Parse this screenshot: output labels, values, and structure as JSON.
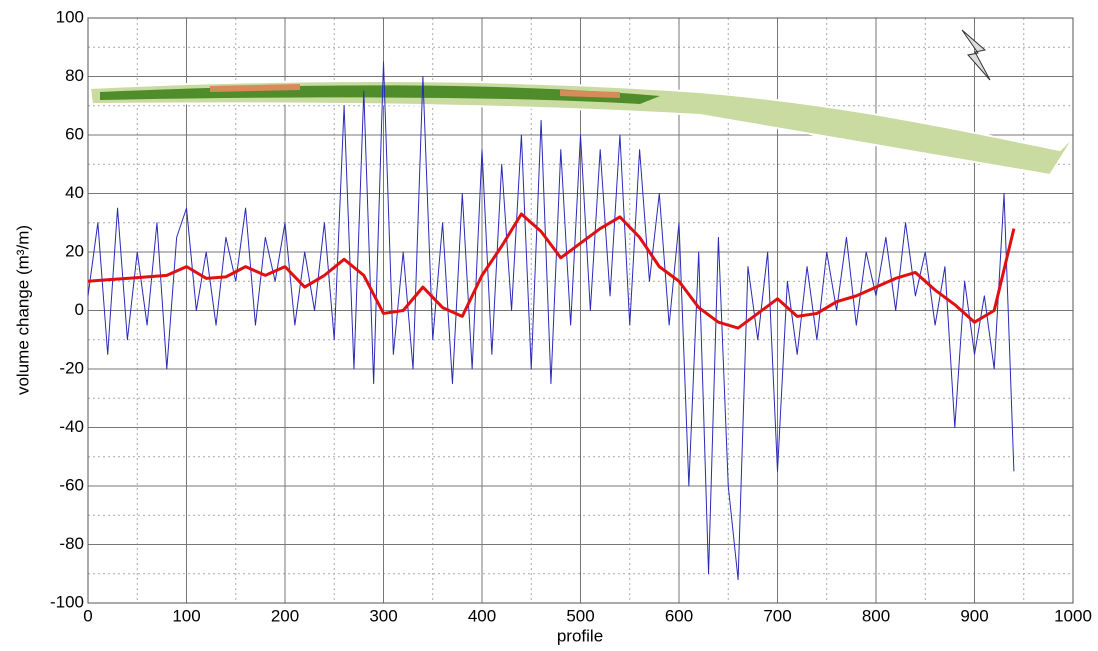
{
  "chart_data": {
    "type": "line",
    "xlabel": "profile",
    "ylabel": "volume change (m³/m)",
    "xlim": [
      0,
      1000
    ],
    "ylim": [
      -100,
      100
    ],
    "xticks": [
      0,
      100,
      200,
      300,
      400,
      500,
      600,
      700,
      800,
      900,
      1000
    ],
    "yticks": [
      -100,
      -80,
      -60,
      -40,
      -20,
      0,
      20,
      40,
      60,
      80,
      100
    ],
    "xminorticks": [
      50,
      150,
      250,
      350,
      450,
      550,
      650,
      750,
      850,
      950
    ],
    "yminorticks": [
      -90,
      -70,
      -50,
      -30,
      -10,
      10,
      30,
      50,
      70,
      90
    ],
    "grid": true,
    "series": [
      {
        "color": "#2a2ab8",
        "width": 1,
        "x": [
          0,
          10,
          20,
          30,
          40,
          50,
          60,
          70,
          80,
          90,
          100,
          110,
          120,
          130,
          140,
          150,
          160,
          170,
          180,
          190,
          200,
          210,
          220,
          230,
          240,
          250,
          260,
          270,
          280,
          290,
          300,
          310,
          320,
          330,
          340,
          350,
          360,
          370,
          380,
          390,
          400,
          410,
          420,
          430,
          440,
          450,
          460,
          470,
          480,
          490,
          500,
          510,
          520,
          530,
          540,
          550,
          560,
          570,
          580,
          590,
          600,
          610,
          620,
          630,
          640,
          650,
          660,
          670,
          680,
          690,
          700,
          710,
          720,
          730,
          740,
          750,
          760,
          770,
          780,
          790,
          800,
          810,
          820,
          830,
          840,
          850,
          860,
          870,
          880,
          890,
          900,
          910,
          920,
          930,
          940
        ],
        "values": [
          5,
          30,
          -15,
          35,
          -10,
          20,
          -5,
          30,
          -20,
          25,
          35,
          0,
          20,
          -5,
          25,
          10,
          35,
          -5,
          25,
          10,
          30,
          -5,
          20,
          0,
          30,
          -10,
          70,
          -20,
          75,
          -25,
          85,
          -15,
          20,
          -20,
          80,
          -10,
          30,
          -25,
          40,
          -20,
          55,
          -15,
          50,
          0,
          60,
          -20,
          65,
          -25,
          55,
          -5,
          60,
          0,
          55,
          5,
          60,
          -5,
          55,
          10,
          40,
          -5,
          30,
          -60,
          20,
          -90,
          25,
          -60,
          -92,
          15,
          -10,
          20,
          -55,
          10,
          -15,
          15,
          -10,
          20,
          0,
          25,
          -5,
          20,
          5,
          25,
          0,
          30,
          5,
          20,
          -5,
          15,
          -40,
          10,
          -15,
          5,
          -20,
          40,
          -55
        ]
      },
      {
        "color": "#e01010",
        "width": 3,
        "x": [
          0,
          20,
          40,
          60,
          80,
          100,
          120,
          140,
          160,
          180,
          200,
          220,
          240,
          260,
          280,
          300,
          320,
          340,
          360,
          380,
          400,
          420,
          440,
          460,
          480,
          500,
          520,
          540,
          560,
          580,
          600,
          620,
          640,
          660,
          680,
          700,
          720,
          740,
          760,
          780,
          800,
          820,
          840,
          860,
          880,
          900,
          920,
          940
        ],
        "values": [
          10,
          10.5,
          11,
          11.5,
          12,
          15,
          11,
          11.5,
          15,
          12,
          15,
          8,
          12,
          17.5,
          12,
          -1,
          0,
          8,
          1,
          -2,
          12,
          22,
          33,
          27,
          18,
          23,
          28,
          32,
          25,
          15,
          10,
          1,
          -4,
          -6,
          -1,
          4,
          -2,
          -1,
          3,
          5,
          8,
          11,
          13,
          7,
          2,
          -4,
          0,
          28
        ]
      }
    ]
  }
}
